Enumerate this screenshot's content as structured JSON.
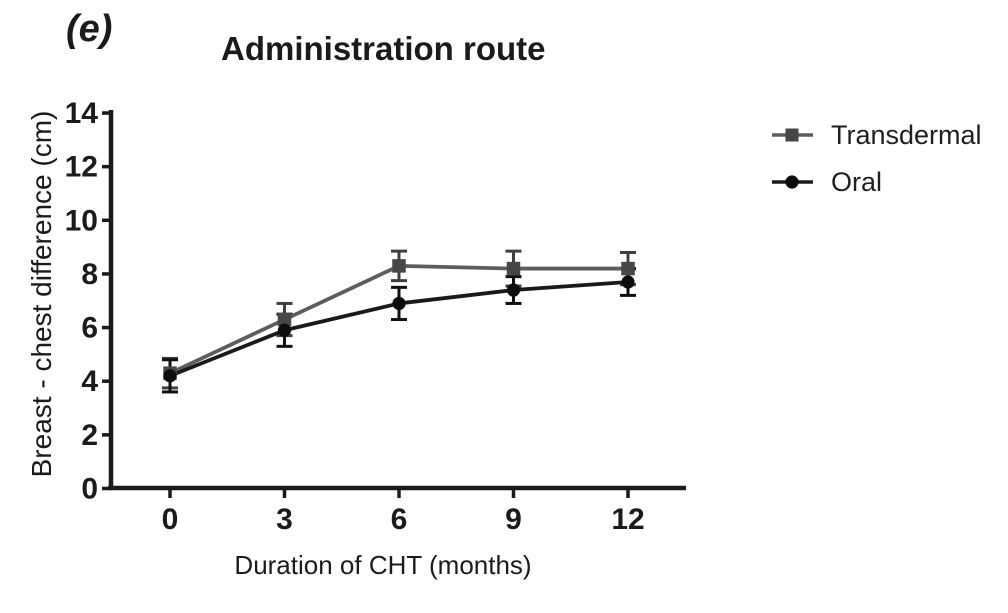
{
  "figure": {
    "panel_label": "(e)"
  },
  "chart_data": {
    "type": "line",
    "title": "Administration route",
    "xlabel": "Duration of CHT (months)",
    "ylabel": "Breast - chest difference (cm)",
    "x": [
      0,
      3,
      6,
      9,
      12
    ],
    "xticks": [
      0,
      3,
      6,
      9,
      12
    ],
    "yticks": [
      0,
      2,
      4,
      6,
      8,
      10,
      12,
      14
    ],
    "xlim": [
      -1.6,
      13.5
    ],
    "ylim": [
      0,
      14
    ],
    "grid": false,
    "legend_position": "right-outside",
    "error_bars": "symmetric, both directions, capped",
    "axis_color": "#1a1a1a",
    "series": [
      {
        "name": "Transdermal",
        "marker": "square",
        "color": "#5d5d5d",
        "marker_color": "#474747",
        "error_color": "#3f3f3f",
        "values": [
          4.3,
          6.3,
          8.3,
          8.2,
          8.2
        ],
        "errors": [
          0.55,
          0.6,
          0.55,
          0.65,
          0.6
        ]
      },
      {
        "name": "Oral",
        "marker": "circle",
        "color": "#1a1a1a",
        "marker_color": "#0d0d0d",
        "error_color": "#101010",
        "values": [
          4.2,
          5.9,
          6.9,
          7.4,
          7.7
        ],
        "errors": [
          0.6,
          0.6,
          0.6,
          0.5,
          0.5
        ]
      }
    ]
  }
}
